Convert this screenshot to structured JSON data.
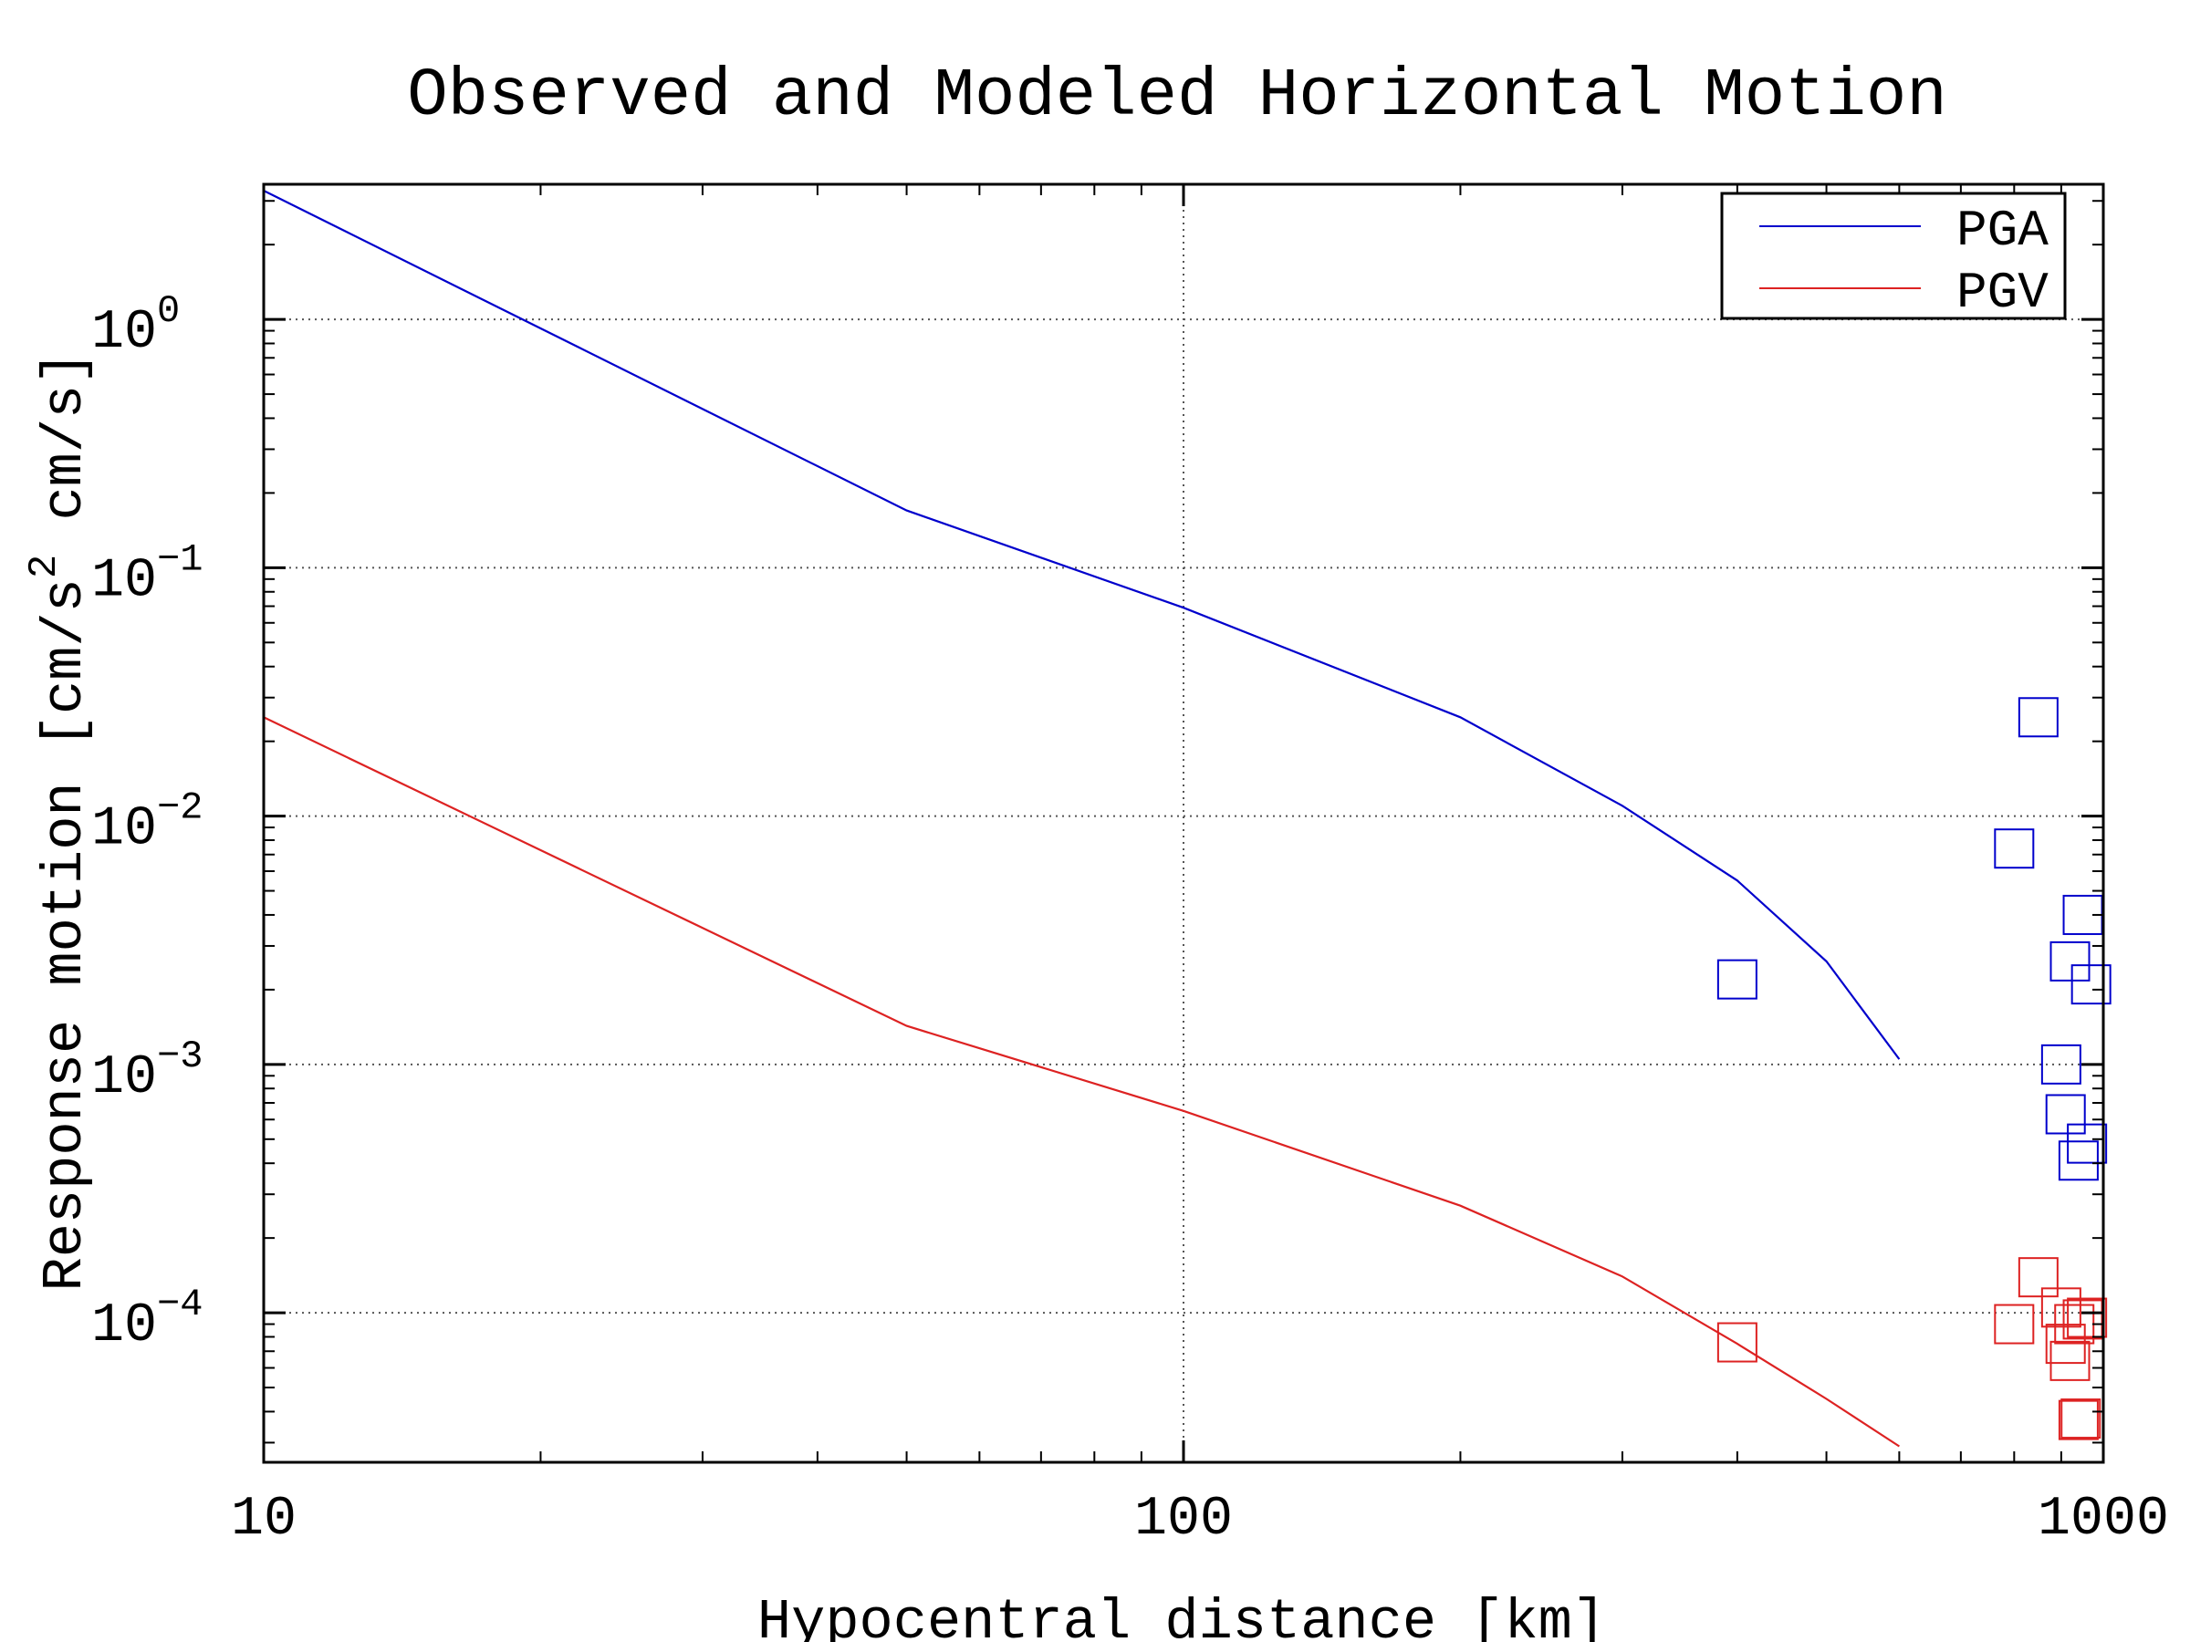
{
  "chart_data": {
    "type": "line",
    "title": "Observed and Modeled Horizontal Motion",
    "xlabel": "Hypocentral distance [km]",
    "ylabel_main": "Response motion  [cm/s",
    "ylabel_sup": "2",
    "ylabel_tail": "  cm/s]",
    "x_scale": "log",
    "y_scale": "log",
    "xlim": [
      10,
      1000
    ],
    "ylim": [
      2.5e-05,
      3.5
    ],
    "grid": true,
    "legend_position": "top-right",
    "x_ticks": [
      {
        "value": 10,
        "label": "10"
      },
      {
        "value": 100,
        "label": "100"
      },
      {
        "value": 1000,
        "label": "1000"
      }
    ],
    "y_ticks": [
      {
        "value": 1,
        "base": "10",
        "exp": "0"
      },
      {
        "value": 0.1,
        "base": "10",
        "exp": "−1"
      },
      {
        "value": 0.01,
        "base": "10",
        "exp": "−2"
      },
      {
        "value": 0.001,
        "base": "10",
        "exp": "−3"
      },
      {
        "value": 0.0001,
        "base": "10",
        "exp": "−4"
      }
    ],
    "series": [
      {
        "name": "PGA",
        "color": "#0000cc",
        "model_x": [
          10,
          50,
          100,
          200,
          300,
          400,
          500,
          600
        ],
        "model_y": [
          3.3,
          0.17,
          0.069,
          0.025,
          0.011,
          0.0055,
          0.0026,
          0.00105
        ],
        "observed_x": [
          400,
          800,
          850,
          950,
          920,
          970,
          900,
          910,
          940,
          960
        ],
        "observed_y": [
          0.0022,
          0.0074,
          0.025,
          0.004,
          0.0026,
          0.0021,
          0.001,
          0.00063,
          0.00041,
          0.00048
        ]
      },
      {
        "name": "PGV",
        "color": "#dd2222",
        "model_x": [
          10,
          50,
          100,
          200,
          300,
          400,
          500,
          600
        ],
        "model_y": [
          0.025,
          0.00143,
          0.00065,
          0.00027,
          0.00014,
          7.5e-05,
          4.5e-05,
          2.9e-05
        ],
        "observed_x": [
          400,
          800,
          850,
          900,
          910,
          920,
          930,
          950,
          960,
          940,
          945
        ],
        "observed_y": [
          7.6e-05,
          9e-05,
          0.000139,
          0.000105,
          7.5e-05,
          6.4e-05,
          9e-05,
          9.4e-05,
          9.55e-05,
          3.7e-05,
          3.75e-05
        ]
      }
    ]
  }
}
